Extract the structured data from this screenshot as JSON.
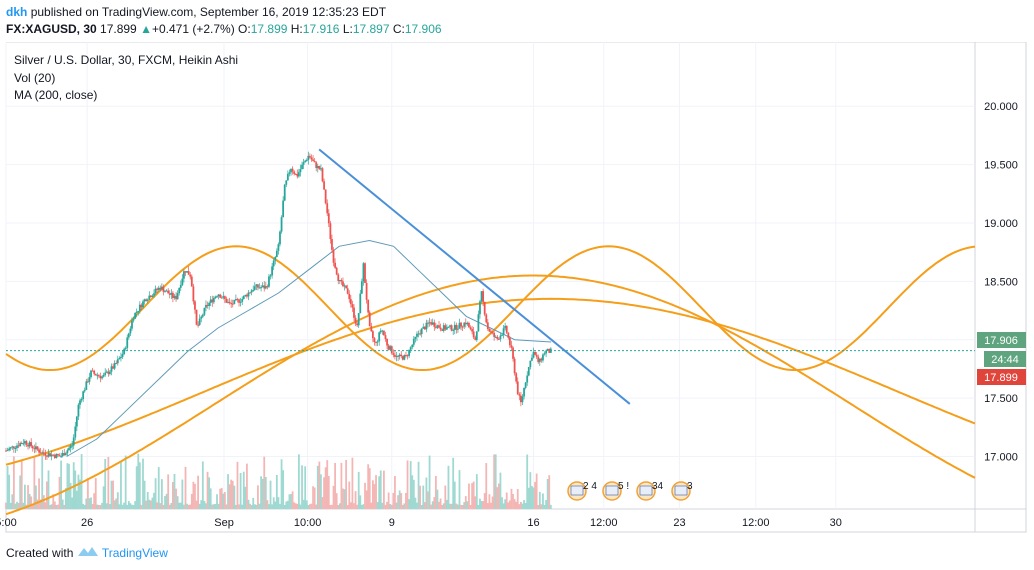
{
  "header": {
    "user": "dkh",
    "published": "published on TradingView.com, September 16, 2019 12:35:23 EDT",
    "symbol": "FX:XAGUSD, 30",
    "last": "17.899",
    "change_arrow": "▲",
    "change": "+0.471 (+2.7%)",
    "o_label": "O:",
    "o_value": "17.899",
    "h_label": "H:",
    "h_value": "17.916",
    "l_label": "L:",
    "l_value": "17.897",
    "c_label": "C:",
    "c_value": "17.906"
  },
  "legend": {
    "title": "Silver / U.S. Dollar, 30, FXCM, Heikin Ashi",
    "vol": "Vol (20)",
    "ma": "MA (200, close)"
  },
  "price_tags": {
    "last": "17.906",
    "countdown": "24:44",
    "open": "17.899"
  },
  "events": [
    "2",
    "4",
    "5",
    "!",
    "34",
    "3"
  ],
  "footer": {
    "created": "Created with",
    "brand": "TradingView"
  },
  "colors": {
    "up": "#26a69a",
    "down": "#ef5350",
    "ma": "#5f9ab8",
    "trendline": "#4a90d9",
    "sine": "#f59e1a",
    "vol_up": "#9fd9d1",
    "vol_down": "#f4b6b4",
    "tag_green": "#5ea47e",
    "tag_red": "#e0453c"
  },
  "chart_data": {
    "type": "candlestick",
    "style": "Heikin Ashi",
    "y_ticks": [
      17.0,
      17.5,
      18.0,
      18.5,
      19.0,
      19.5,
      20.0
    ],
    "y_tick_labels": [
      "17.000",
      "17.500",
      "18.000",
      "18.500",
      "19.000",
      "19.500",
      "20.000"
    ],
    "ylim": [
      16.55,
      20.55
    ],
    "x_range": [
      0,
      160
    ],
    "x_ticks": [
      {
        "x": 0,
        "label": "5:00"
      },
      {
        "x": 13.4,
        "label": "26"
      },
      {
        "x": 36,
        "label": "Sep"
      },
      {
        "x": 49.8,
        "label": "10:00"
      },
      {
        "x": 63.7,
        "label": "9"
      },
      {
        "x": 87.1,
        "label": "16"
      },
      {
        "x": 98.7,
        "label": "12:00"
      },
      {
        "x": 111.2,
        "label": "23"
      },
      {
        "x": 123.8,
        "label": "12:00"
      },
      {
        "x": 137,
        "label": "30"
      }
    ],
    "price_path": [
      [
        0,
        17.05
      ],
      [
        3,
        17.13
      ],
      [
        6,
        17.03
      ],
      [
        9,
        17.0
      ],
      [
        11,
        17.1
      ],
      [
        12,
        17.45
      ],
      [
        14,
        17.72
      ],
      [
        16,
        17.68
      ],
      [
        18,
        17.78
      ],
      [
        19.5,
        17.9
      ],
      [
        21,
        18.2
      ],
      [
        23,
        18.35
      ],
      [
        25.5,
        18.45
      ],
      [
        28,
        18.35
      ],
      [
        29.5,
        18.6
      ],
      [
        30.5,
        18.55
      ],
      [
        31.5,
        18.1
      ],
      [
        33,
        18.28
      ],
      [
        35,
        18.4
      ],
      [
        37,
        18.3
      ],
      [
        39,
        18.35
      ],
      [
        41,
        18.45
      ],
      [
        43,
        18.45
      ],
      [
        45,
        18.8
      ],
      [
        46,
        19.3
      ],
      [
        47,
        19.48
      ],
      [
        48,
        19.4
      ],
      [
        49,
        19.5
      ],
      [
        50,
        19.58
      ],
      [
        51,
        19.5
      ],
      [
        52,
        19.45
      ],
      [
        53,
        19.1
      ],
      [
        54,
        18.7
      ],
      [
        55,
        18.5
      ],
      [
        56.5,
        18.4
      ],
      [
        58,
        18.1
      ],
      [
        59,
        18.65
      ],
      [
        60,
        18.1
      ],
      [
        61,
        17.95
      ],
      [
        62,
        18.1
      ],
      [
        63,
        17.95
      ],
      [
        64.5,
        17.85
      ],
      [
        66,
        17.85
      ],
      [
        68,
        18.05
      ],
      [
        70,
        18.15
      ],
      [
        72,
        18.1
      ],
      [
        74,
        18.1
      ],
      [
        76,
        18.15
      ],
      [
        77.5,
        18.0
      ],
      [
        78.5,
        18.4
      ],
      [
        79.5,
        18.1
      ],
      [
        81,
        18.0
      ],
      [
        82.5,
        18.1
      ],
      [
        83.5,
        17.9
      ],
      [
        84.5,
        17.55
      ],
      [
        85,
        17.45
      ],
      [
        86,
        17.7
      ],
      [
        87,
        17.9
      ],
      [
        88,
        17.8
      ],
      [
        89,
        17.9
      ],
      [
        90,
        17.9
      ]
    ],
    "ma_path": [
      [
        10,
        17.0
      ],
      [
        15,
        17.15
      ],
      [
        20,
        17.4
      ],
      [
        25,
        17.65
      ],
      [
        30,
        17.9
      ],
      [
        35,
        18.1
      ],
      [
        40,
        18.25
      ],
      [
        45,
        18.4
      ],
      [
        50,
        18.6
      ],
      [
        55,
        18.8
      ],
      [
        60,
        18.85
      ],
      [
        64,
        18.8
      ],
      [
        68,
        18.6
      ],
      [
        72,
        18.4
      ],
      [
        76,
        18.2
      ],
      [
        80,
        18.1
      ],
      [
        84,
        18.0
      ],
      [
        90,
        17.98
      ]
    ],
    "trendline": {
      "x1": 51.7,
      "y1": 19.63,
      "x2": 103,
      "y2": 17.45
    },
    "sine_curves": [
      {
        "center": 18.27,
        "amplitude": 0.53,
        "period": 61.5,
        "phase_x": 38,
        "x_start": 0,
        "x_end": 160
      },
      {
        "center": 17.45,
        "amplitude": 1.1,
        "period": 210,
        "phase_x": 87,
        "x_start": 0,
        "x_end": 160
      },
      {
        "center": 17.55,
        "amplitude": 0.8,
        "period": 230,
        "phase_x": 90,
        "x_start": 0,
        "x_end": 160
      }
    ],
    "volume_note": "histogram bars along the bottom, teal up / pink down"
  }
}
